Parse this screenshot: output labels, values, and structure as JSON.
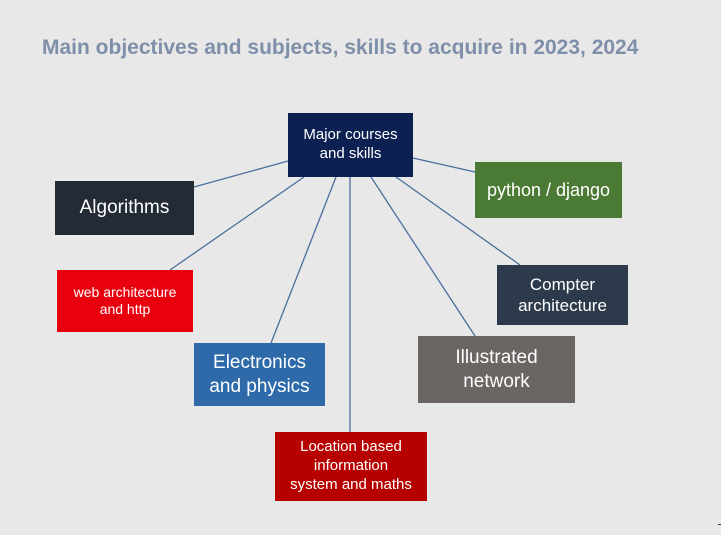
{
  "title": "Main objectives and subjects, skills to acquire in 2023, 2024",
  "colors": {
    "background": "#e8e8e8",
    "title": "#7f8fa9",
    "connector": "#4a6f9e"
  },
  "center": {
    "label_line1": "Major courses",
    "label_line2": "and skills",
    "color": "#0c2152"
  },
  "nodes": [
    {
      "key": "algorithms",
      "line1": "Algorithms",
      "line2": "",
      "color": "#232b36"
    },
    {
      "key": "python",
      "line1": "python / django",
      "line2": "",
      "color": "#4b7a34"
    },
    {
      "key": "web",
      "line1": "web architecture",
      "line2": "and http",
      "color": "#e8000e"
    },
    {
      "key": "compter",
      "line1": "Compter",
      "line2": "architecture",
      "color": "#2d3a4b"
    },
    {
      "key": "electronics",
      "line1": "Electronics",
      "line2": "and physics",
      "color": "#2e6aaa"
    },
    {
      "key": "illustrated",
      "line1": "Illustrated",
      "line2": "network",
      "color": "#6b6664"
    },
    {
      "key": "location",
      "line1": "Location based",
      "line2": "information",
      "line3": "system and maths",
      "color": "#b70000"
    }
  ]
}
